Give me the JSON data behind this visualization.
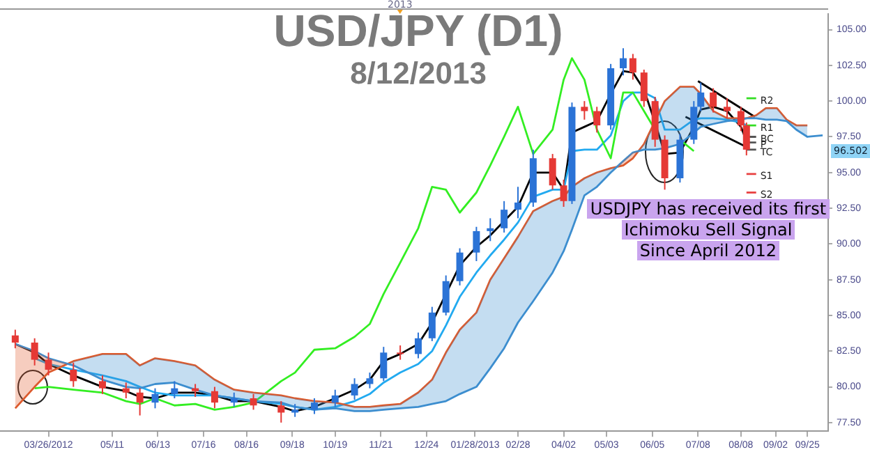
{
  "chart_data": {
    "type": "candlestick",
    "title": "USD/JPY (D1)",
    "subtitle": "8/12/2013",
    "x": [
      "2012-03-02",
      "2012-03-16",
      "2012-03-26",
      "2012-04-13",
      "2012-05-04",
      "2012-05-21",
      "2012-05-31",
      "2012-06-11",
      "2012-06-25",
      "2012-07-10",
      "2012-07-24",
      "2012-08-07",
      "2012-08-21",
      "2012-09-10",
      "2012-09-20",
      "2012-10-04",
      "2012-10-19",
      "2012-11-02",
      "2012-11-13",
      "2012-11-23",
      "2012-12-05",
      "2012-12-18",
      "2012-12-28",
      "2013-01-07",
      "2013-01-17",
      "2013-01-29",
      "2013-02-08",
      "2013-02-18",
      "2013-02-28",
      "2013-03-11",
      "2013-03-25",
      "2013-04-02",
      "2013-04-08",
      "2013-04-17",
      "2013-04-26",
      "2013-05-06",
      "2013-05-15",
      "2013-05-22",
      "2013-05-30",
      "2013-06-07",
      "2013-06-14",
      "2013-06-25",
      "2013-07-05",
      "2013-07-10",
      "2013-07-19",
      "2013-07-29",
      "2013-08-08",
      "2013-08-12",
      "2013-08-19",
      "2013-08-26",
      "2013-09-03",
      "2013-09-10",
      "2013-09-17",
      "2013-09-25",
      "2013-10-06"
    ],
    "ohlc": [
      [
        83.6,
        84.0,
        82.7,
        83.1
      ],
      [
        83.1,
        83.4,
        81.5,
        81.9
      ],
      [
        81.9,
        82.4,
        80.8,
        81.2
      ],
      [
        81.2,
        81.7,
        80.0,
        80.4
      ],
      [
        80.4,
        80.8,
        79.5,
        79.9
      ],
      [
        79.9,
        80.3,
        79.2,
        79.6
      ],
      [
        79.6,
        79.9,
        78.0,
        78.9
      ],
      [
        78.9,
        79.9,
        78.5,
        79.5
      ],
      [
        79.5,
        80.4,
        79.2,
        79.9
      ],
      [
        79.9,
        80.2,
        79.3,
        79.7
      ],
      [
        79.7,
        80.0,
        78.5,
        78.9
      ],
      [
        78.9,
        79.6,
        78.6,
        79.2
      ],
      [
        79.2,
        79.5,
        78.4,
        78.7
      ],
      [
        78.7,
        79.0,
        77.5,
        78.2
      ],
      [
        78.2,
        78.8,
        77.9,
        78.4
      ],
      [
        78.4,
        79.2,
        78.1,
        78.9
      ],
      [
        78.9,
        79.8,
        78.6,
        79.4
      ],
      [
        79.4,
        80.6,
        79.1,
        80.2
      ],
      [
        80.2,
        81.0,
        79.9,
        80.6
      ],
      [
        80.6,
        82.8,
        80.4,
        82.4
      ],
      [
        82.4,
        82.9,
        81.9,
        82.3
      ],
      [
        82.3,
        83.8,
        82.0,
        83.4
      ],
      [
        83.4,
        85.6,
        83.2,
        85.2
      ],
      [
        85.2,
        87.8,
        85.0,
        87.4
      ],
      [
        87.4,
        89.7,
        87.1,
        89.4
      ],
      [
        89.4,
        91.2,
        88.8,
        90.9
      ],
      [
        90.9,
        91.8,
        90.2,
        91.1
      ],
      [
        91.1,
        93.0,
        90.8,
        92.4
      ],
      [
        92.4,
        94.0,
        91.8,
        92.9
      ],
      [
        92.9,
        96.6,
        92.6,
        96.0
      ],
      [
        96.0,
        96.3,
        93.8,
        94.1
      ],
      [
        94.1,
        94.5,
        92.6,
        93.0
      ],
      [
        93.0,
        99.9,
        92.8,
        99.6
      ],
      [
        99.6,
        100.0,
        98.7,
        99.3
      ],
      [
        99.3,
        99.6,
        97.8,
        98.3
      ],
      [
        98.3,
        102.6,
        98.0,
        102.3
      ],
      [
        102.3,
        103.7,
        101.8,
        103.0
      ],
      [
        103.0,
        103.3,
        101.5,
        102.0
      ],
      [
        102.0,
        102.2,
        99.6,
        100.0
      ],
      [
        100.0,
        100.3,
        96.8,
        97.3
      ],
      [
        97.3,
        97.6,
        93.8,
        94.6
      ],
      [
        94.6,
        97.7,
        94.3,
        97.3
      ],
      [
        97.3,
        100.0,
        97.0,
        99.6
      ],
      [
        99.6,
        101.3,
        99.3,
        100.6
      ],
      [
        100.6,
        100.9,
        99.2,
        99.6
      ],
      [
        99.6,
        100.2,
        98.8,
        99.3
      ],
      [
        99.3,
        99.6,
        97.9,
        98.3
      ],
      [
        98.3,
        98.5,
        96.2,
        96.6
      ],
      null,
      null,
      null,
      null,
      null,
      null,
      null
    ],
    "colors": [
      "#e53935",
      "#e53935",
      "#e53935",
      "#e53935",
      "#e53935",
      "#e53935",
      "#e53935",
      "#2b73d6",
      "#2b73d6",
      "#e53935",
      "#e53935",
      "#2b73d6",
      "#e53935",
      "#e53935",
      "#2b73d6",
      "#2b73d6",
      "#2b73d6",
      "#2b73d6",
      "#2b73d6",
      "#2b73d6",
      "#e53935",
      "#2b73d6",
      "#2b73d6",
      "#2b73d6",
      "#2b73d6",
      "#2b73d6",
      "#2b73d6",
      "#2b73d6",
      "#2b73d6",
      "#2b73d6",
      "#e53935",
      "#e53935",
      "#2b73d6",
      "#e53935",
      "#e53935",
      "#2b73d6",
      "#2b73d6",
      "#e53935",
      "#e53935",
      "#e53935",
      "#e53935",
      "#2b73d6",
      "#2b73d6",
      "#2b73d6",
      "#e53935",
      "#e53935",
      "#e53935",
      "#e53935",
      null,
      null,
      null,
      null,
      null,
      null,
      null
    ],
    "series": [
      {
        "type": "line",
        "color": "#3d8ecf",
        "values": [
          83.0,
          82.5,
          82.0,
          81.5,
          80.5,
          80.0,
          79.9,
          80.2,
          80.3,
          79.8,
          79.4,
          79.2,
          79.0,
          78.9,
          78.6,
          78.4,
          78.5,
          78.3,
          78.3,
          78.4,
          78.5,
          78.6,
          78.8,
          79.0,
          79.5,
          80.0,
          81.3,
          82.7,
          84.5,
          86.0,
          88.0,
          89.5,
          91.0,
          93.4,
          94.0,
          95.0,
          95.8,
          96.4,
          96.6,
          96.6,
          96.7,
          97.0,
          97.8,
          98.2,
          98.4,
          98.6,
          98.7,
          98.8,
          98.8,
          98.7,
          98.7,
          98.6,
          98.0,
          97.5,
          97.6
        ],
        "upper": [
          83.0,
          82.5,
          82.0,
          81.5,
          80.5,
          80.0,
          79.9,
          80.2,
          80.3,
          79.8,
          79.4,
          79.2,
          79.0,
          78.9,
          78.6,
          78.4,
          78.5,
          78.3,
          78.3,
          78.4,
          78.5,
          78.6,
          78.8,
          79.0,
          79.5,
          80.0,
          81.3,
          82.7,
          84.5,
          86.0,
          88.0,
          89.5,
          91.0,
          93.4,
          94.0,
          95.0,
          95.8,
          96.4,
          96.6,
          96.6,
          96.7,
          97.0,
          97.8,
          98.2,
          98.4,
          98.6,
          98.7,
          98.8,
          98.8,
          98.7,
          98.7,
          98.6,
          98.0,
          97.5,
          null
        ],
        "lower": [
          78.5,
          80.0,
          81.0,
          81.8,
          82.3,
          82.3,
          81.5,
          82.0,
          81.8,
          81.5,
          80.5,
          79.8,
          79.6,
          79.4,
          79.2,
          79.0,
          78.9,
          78.6,
          78.6,
          78.7,
          78.8,
          79.6,
          80.5,
          82.4,
          84.0,
          85.2,
          87.5,
          89.0,
          90.5,
          92.3,
          93.0,
          93.3,
          94.0,
          94.6,
          95.0,
          95.3,
          95.5,
          96.0,
          97.0,
          98.6,
          100.0,
          101.0,
          101.0,
          100.5,
          99.3,
          98.8,
          98.8,
          98.8,
          99.0,
          99.5,
          99.5,
          98.7,
          98.3,
          98.3,
          null
        ]
      },
      {
        "type": "line",
        "color": "#e05a2a",
        "values": [
          78.5,
          80.0,
          81.0,
          81.8,
          82.3,
          82.3,
          81.5,
          82.0,
          81.8,
          81.5,
          80.5,
          79.8,
          79.6,
          79.4,
          79.2,
          79.0,
          78.9,
          78.6,
          78.6,
          78.7,
          78.8,
          79.6,
          80.5,
          82.4,
          84.0,
          85.2,
          87.5,
          89.0,
          90.5,
          92.3,
          93.0,
          93.3,
          94.0,
          94.6,
          95.0,
          95.3,
          95.5,
          96.0,
          97.0,
          98.6,
          100.0,
          101.0,
          101.0,
          100.5,
          99.3,
          98.8,
          98.8,
          98.8,
          99.0,
          99.5,
          99.5,
          98.7,
          98.3,
          98.3,
          null
        ]
      },
      {
        "type": "line",
        "color": "#33ee22",
        "values": [
          null,
          79.9,
          80.0,
          79.8,
          79.6,
          79.0,
          78.8,
          79.2,
          78.7,
          78.8,
          78.4,
          78.6,
          78.9,
          80.4,
          81.0,
          82.6,
          82.7,
          83.5,
          84.4,
          86.5,
          88.7,
          91.1,
          94.0,
          93.8,
          92.2,
          93.6,
          95.5,
          97.5,
          99.6,
          96.3,
          98.0,
          101.5,
          103.0,
          101.5,
          98.0,
          96.0,
          100.6,
          100.6,
          99.3,
          98.0,
          null,
          97.3,
          96.5,
          null,
          null,
          null,
          null,
          null,
          null,
          null,
          null,
          null,
          null,
          null,
          null
        ]
      },
      {
        "type": "line",
        "color": "#22aaf0",
        "values": [
          null,
          82.0,
          81.6,
          81.2,
          80.8,
          80.4,
          80.0,
          79.6,
          79.4,
          79.4,
          79.4,
          79.2,
          79.0,
          78.8,
          78.6,
          78.4,
          78.6,
          79.0,
          79.5,
          80.3,
          81.0,
          81.6,
          82.5,
          84.3,
          86.3,
          88.0,
          89.2,
          90.3,
          91.5,
          93.3,
          93.8,
          93.8,
          96.5,
          96.6,
          96.6,
          97.6,
          100.0,
          100.6,
          100.6,
          100.2,
          98.0,
          98.0,
          98.7,
          98.8,
          98.8,
          98.7,
          98.5,
          98.3,
          null,
          null,
          null,
          null,
          null,
          null,
          null
        ]
      },
      {
        "type": "line",
        "color": "#000000",
        "values": [
          83.0,
          82.4,
          81.6,
          80.8,
          80.0,
          79.7,
          79.3,
          79.2,
          79.6,
          79.6,
          79.4,
          79.0,
          79.0,
          78.6,
          78.3,
          78.6,
          79.2,
          79.8,
          80.5,
          81.8,
          82.3,
          83.0,
          84.5,
          86.5,
          88.5,
          89.8,
          90.6,
          91.6,
          92.6,
          95.0,
          95.0,
          93.8,
          97.8,
          98.2,
          98.6,
          100.5,
          102.1,
          102.0,
          100.8,
          98.5,
          96.3,
          96.4,
          98.2,
          99.4,
          99.6,
          99.3,
          98.2,
          97.2,
          null,
          null,
          null,
          null,
          null,
          null,
          null
        ]
      },
      {
        "type": "line",
        "color": "#000000",
        "x": [
          "2013-07-08",
          "2013-08-18"
        ],
        "values": [
          101.4,
          98.9
        ]
      },
      {
        "type": "line",
        "color": "#000000",
        "x": [
          "2013-06-29",
          "2013-08-14"
        ],
        "values": [
          98.9,
          96.7
        ]
      },
      {
        "type": "line",
        "name": "R2",
        "color": "#33dd22",
        "x": [
          "2013-08-12",
          "2013-08-19"
        ],
        "values": [
          100.2,
          100.2
        ]
      },
      {
        "type": "line",
        "name": "R1",
        "color": "#33dd22",
        "x": [
          "2013-08-12",
          "2013-08-19"
        ],
        "values": [
          98.3,
          98.3
        ]
      },
      {
        "type": "line",
        "name": "BC",
        "color": "#555555",
        "x": [
          "2013-08-12",
          "2013-08-19"
        ],
        "values": [
          97.5,
          97.5
        ]
      },
      {
        "type": "line",
        "name": "P",
        "color": "#555555",
        "x": [
          "2013-08-12",
          "2013-08-19"
        ],
        "values": [
          97.1,
          97.1
        ]
      },
      {
        "type": "line",
        "name": "TC",
        "color": "#555555",
        "x": [
          "2013-08-12",
          "2013-08-19"
        ],
        "values": [
          96.6,
          96.6
        ]
      },
      {
        "type": "line",
        "name": "S1",
        "color": "#e84040",
        "x": [
          "2013-08-12",
          "2013-08-19"
        ],
        "values": [
          94.9,
          94.9
        ]
      },
      {
        "type": "line",
        "name": "S2",
        "color": "#e84040",
        "x": [
          "2013-08-12",
          "2013-08-19"
        ],
        "values": [
          93.6,
          93.6
        ]
      }
    ],
    "xlim": [
      "2012-02-20",
      "2013-10-10"
    ],
    "xticks": [
      {
        "value": "2012-03-26",
        "label": "03/26/2012"
      },
      {
        "value": "2012-05-11",
        "label": "05/11"
      },
      {
        "value": "2012-06-13",
        "label": "06/13"
      },
      {
        "value": "2012-07-16",
        "label": "07/16"
      },
      {
        "value": "2012-08-16",
        "label": "08/16"
      },
      {
        "value": "2012-09-18",
        "label": "09/18"
      },
      {
        "value": "2012-10-19",
        "label": "10/19"
      },
      {
        "value": "2012-11-21",
        "label": "11/21"
      },
      {
        "value": "2012-12-24",
        "label": "12/24"
      },
      {
        "value": "2013-01-28",
        "label": "01/28/2013"
      },
      {
        "value": "2013-02-28",
        "label": "02/28"
      },
      {
        "value": "2013-04-02",
        "label": "04/02"
      },
      {
        "value": "2013-05-03",
        "label": "05/03"
      },
      {
        "value": "2013-06-05",
        "label": "06/05"
      },
      {
        "value": "2013-07-08",
        "label": "07/08"
      },
      {
        "value": "2013-08-08",
        "label": "08/08"
      },
      {
        "value": "2013-09-02",
        "label": "09/02"
      },
      {
        "value": "2013-09-25",
        "label": "09/25"
      }
    ],
    "ylim": [
      76.9,
      106.1
    ],
    "yticks": [
      {
        "value": 77.5,
        "label": "77.50"
      },
      {
        "value": 80,
        "label": "80.00"
      },
      {
        "value": 82.5,
        "label": "82.50"
      },
      {
        "value": 85,
        "label": "85.00"
      },
      {
        "value": 87.5,
        "label": "87.50"
      },
      {
        "value": 90,
        "label": "90.00"
      },
      {
        "value": 92.5,
        "label": "92.50"
      },
      {
        "value": 95,
        "label": "95.00"
      },
      {
        "value": 97.5,
        "label": "97.50"
      },
      {
        "value": 100,
        "label": "100.00"
      },
      {
        "value": 102.5,
        "label": "102.50"
      },
      {
        "value": 105,
        "label": "105.00"
      }
    ],
    "annotations": [
      "USDJPY has received its first\nIchimoku Sell Signal\nSince April 2012",
      "2013",
      {
        "text": "96.502",
        "y": 96.502
      }
    ]
  }
}
